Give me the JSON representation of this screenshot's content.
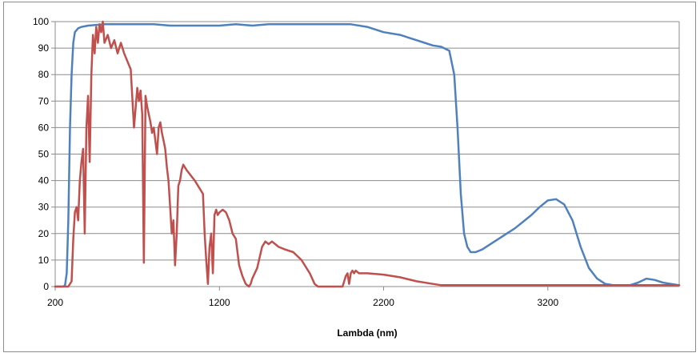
{
  "chart_data": {
    "type": "line",
    "title": "",
    "xlabel": "Lambda (nm)",
    "ylabel": "",
    "xlim": [
      200,
      4000
    ],
    "ylim": [
      0,
      100
    ],
    "x_ticks": [
      200,
      1200,
      2200,
      3200
    ],
    "y_ticks": [
      0,
      10,
      20,
      30,
      40,
      50,
      60,
      70,
      80,
      90,
      100
    ],
    "grid": "horizontal",
    "legend": "none",
    "series": [
      {
        "color": "#4F81BD",
        "x": [
          200,
          250,
          260,
          270,
          280,
          290,
          300,
          310,
          320,
          340,
          360,
          400,
          500,
          600,
          700,
          800,
          900,
          1000,
          1100,
          1200,
          1300,
          1400,
          1500,
          1600,
          1700,
          1800,
          1900,
          2000,
          2100,
          2200,
          2300,
          2400,
          2450,
          2500,
          2550,
          2600,
          2630,
          2650,
          2670,
          2690,
          2710,
          2730,
          2760,
          2800,
          2900,
          3000,
          3100,
          3150,
          3200,
          3250,
          3300,
          3350,
          3400,
          3450,
          3500,
          3550,
          3600,
          3650,
          3700,
          3750,
          3800,
          3850,
          3900,
          3950,
          4000
        ],
        "y": [
          0,
          0,
          0.5,
          5,
          25,
          60,
          80,
          92,
          96,
          97.5,
          98,
          98.5,
          99,
          99,
          99,
          99,
          98.5,
          98.5,
          98.5,
          98.5,
          99,
          98.5,
          99,
          99,
          99,
          99,
          99,
          99,
          98,
          96,
          95,
          93,
          92,
          91,
          90.5,
          89,
          80,
          60,
          35,
          20,
          15,
          13,
          13,
          14,
          18,
          22,
          27,
          30,
          32.5,
          33,
          31,
          25,
          15,
          7,
          3,
          1,
          0.5,
          0.5,
          0.5,
          1.5,
          3,
          2.5,
          1.5,
          1,
          0.5
        ]
      },
      {
        "color": "#C0504D",
        "x": [
          200,
          280,
          300,
          310,
          320,
          330,
          340,
          350,
          360,
          370,
          380,
          390,
          400,
          410,
          420,
          430,
          440,
          450,
          460,
          470,
          480,
          490,
          500,
          520,
          540,
          560,
          580,
          600,
          620,
          640,
          660,
          680,
          700,
          710,
          720,
          730,
          740,
          750,
          760,
          770,
          780,
          790,
          800,
          810,
          820,
          830,
          840,
          850,
          860,
          870,
          880,
          890,
          900,
          910,
          920,
          930,
          940,
          950,
          960,
          970,
          980,
          1000,
          1050,
          1100,
          1110,
          1120,
          1130,
          1140,
          1150,
          1160,
          1170,
          1180,
          1190,
          1200,
          1220,
          1240,
          1260,
          1280,
          1300,
          1320,
          1340,
          1360,
          1380,
          1390,
          1400,
          1430,
          1460,
          1480,
          1500,
          1520,
          1540,
          1560,
          1600,
          1650,
          1700,
          1750,
          1780,
          1800,
          1830,
          1850,
          1900,
          1950,
          1970,
          1980,
          1990,
          2000,
          2010,
          2020,
          2030,
          2050,
          2100,
          2200,
          2300,
          2400,
          2500,
          2550,
          2600,
          2800,
          3000,
          3200,
          3400,
          3600,
          3800,
          4000
        ],
        "y": [
          0,
          0,
          2,
          18,
          28,
          30,
          25,
          40,
          47,
          52,
          20,
          60,
          72,
          47,
          80,
          95,
          88,
          98,
          92,
          99,
          96,
          100,
          92,
          95,
          90,
          93,
          88,
          92,
          88,
          85,
          82,
          60,
          75,
          70,
          74,
          65,
          9,
          72,
          68,
          65,
          62,
          58,
          60,
          55,
          50,
          60,
          62,
          58,
          55,
          52,
          45,
          40,
          30,
          20,
          25,
          8,
          20,
          38,
          40,
          44,
          46,
          44,
          40,
          35,
          20,
          10,
          1,
          15,
          20,
          5,
          27,
          29,
          27,
          28,
          29,
          28,
          25,
          20,
          18,
          8,
          4,
          1,
          0,
          1,
          3,
          7,
          15,
          17,
          16,
          17,
          16,
          15,
          14,
          13,
          10,
          5,
          1,
          0,
          0,
          0,
          0,
          0,
          4,
          5,
          1,
          5,
          6,
          5,
          6,
          5,
          5,
          4.5,
          3.5,
          2,
          1,
          0.5,
          0.5,
          0.5,
          0.5,
          0.5,
          0.5,
          0.5,
          0.5,
          0.5
        ]
      }
    ]
  }
}
